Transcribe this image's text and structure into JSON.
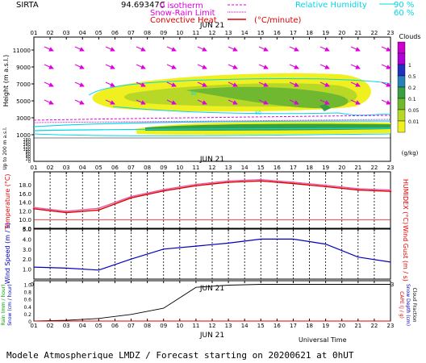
{
  "header": {
    "site": "SIRTA",
    "coords": "94.69347C",
    "legend_isotherm": "0 isotherm",
    "legend_snowrain": "Snow-Rain Limit",
    "legend_convective": "Convective Heat",
    "legend_convective_unit": "(°C/minute)",
    "legend_rh": "Relative Humidity",
    "rh_90": "90 %",
    "rh_60": "60 %"
  },
  "colors": {
    "magenta": "#e000e0",
    "red": "#e00000",
    "cyan": "#00d8e8",
    "blue": "#0000c0",
    "black": "#000000",
    "green": "#00a000"
  },
  "hours": [
    "01",
    "02",
    "03",
    "04",
    "05",
    "06",
    "07",
    "08",
    "09",
    "10",
    "11",
    "12",
    "13",
    "14",
    "15",
    "16",
    "17",
    "18",
    "19",
    "20",
    "21",
    "22",
    "23"
  ],
  "date_label": "JUN 21",
  "footer": {
    "universal_time": "Universal Time",
    "model_text": "Modele Atmospherique LMDZ / Forecast starting on 20200621 at 0hUT"
  },
  "chart_data": [
    {
      "type": "heatmap",
      "name": "clouds",
      "ylabel": "Height  (m  a.s.l.)",
      "ylabel_low": "Up to 200 m  a.s.l.",
      "yticks_upper": [
        "11000",
        "9000",
        "7000",
        "5000",
        "3000",
        "1000"
      ],
      "yticks_lower": [
        "180",
        "160",
        "140",
        "120",
        "100",
        "80",
        "60",
        "40",
        "20",
        "0"
      ],
      "colorbar_title": "Clouds",
      "colorbar_unit": "(g/kg)",
      "colorbar_ticks": [
        "1",
        "0.5",
        "0.2",
        "0.1",
        "0.05",
        "0.01"
      ],
      "colorbar_colors": [
        "#cc00cc",
        "#b000d8",
        "#2030c0",
        "#2880b8",
        "#38a040",
        "#70b830",
        "#b8d828",
        "#f0f020"
      ],
      "contour_labels": [
        "90",
        "60"
      ]
    },
    {
      "type": "line",
      "name": "temperature",
      "ylabel": "Temperature (°C)",
      "ylabel_right": "HUMIDEX (°C)",
      "ylim": [
        8,
        21
      ],
      "yticks": [
        "18.0",
        "16.0",
        "14.0",
        "12.0",
        "10.0",
        "8.0"
      ],
      "x": [
        1,
        3,
        5,
        7,
        9,
        11,
        13,
        15,
        17,
        19,
        21,
        23
      ],
      "series": [
        {
          "key": "temperature",
          "values": [
            12.5,
            11.6,
            12.2,
            15.0,
            16.6,
            17.8,
            18.6,
            18.9,
            18.3,
            17.6,
            16.8,
            16.5
          ]
        },
        {
          "key": "humidex",
          "values": [
            12.8,
            11.9,
            12.6,
            15.3,
            16.9,
            18.1,
            18.9,
            19.2,
            18.6,
            17.9,
            17.1,
            16.8
          ]
        }
      ]
    },
    {
      "type": "line",
      "name": "wind",
      "ylabel": "Wind Speed (m / s)",
      "ylabel_right": "Wind Gust (m / s)",
      "ylim": [
        0,
        5
      ],
      "yticks": [
        "5.0",
        "4.0",
        "3.0",
        "2.0",
        "1.0"
      ],
      "x": [
        1,
        3,
        5,
        7,
        9,
        11,
        13,
        15,
        17,
        19,
        21,
        23
      ],
      "series": [
        {
          "key": "wind_speed",
          "values": [
            1.2,
            1.1,
            0.9,
            2.0,
            3.0,
            3.3,
            3.6,
            4.0,
            4.0,
            3.5,
            2.2,
            1.7
          ]
        }
      ]
    },
    {
      "type": "line",
      "name": "precipitation",
      "ylabel_left": [
        "Rain (mm / hour)",
        "Snow (cm / hour)"
      ],
      "ylabel_right": [
        "CAPE (J / g)",
        "Snow Depth (cm)",
        "Cloud Fraction"
      ],
      "ylim": [
        0,
        1.1
      ],
      "yticks": [
        "1.0",
        "0.8",
        "0.6",
        "0.4",
        "0.2",
        "0"
      ],
      "x": [
        1,
        3,
        5,
        7,
        9,
        11,
        13,
        15,
        17,
        19,
        21,
        23
      ],
      "series": [
        {
          "key": "cloud_fraction",
          "values": [
            0.0,
            0.02,
            0.07,
            0.18,
            0.35,
            0.92,
            0.98,
            1.0,
            1.0,
            1.0,
            1.0,
            1.0
          ]
        },
        {
          "key": "cape",
          "values": [
            0.0,
            0.0,
            0.0,
            0.0,
            0.0,
            0.0,
            0.0,
            0.0,
            0.0,
            0.0,
            0.0,
            0.0
          ]
        }
      ]
    }
  ]
}
